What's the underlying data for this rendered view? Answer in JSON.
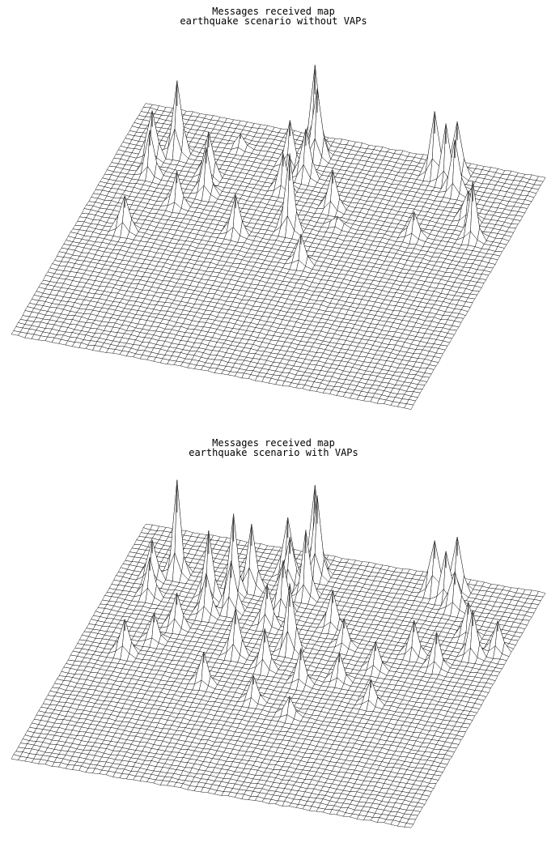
{
  "chart_data": [
    {
      "type": "surface",
      "title_line1": "Messages received map",
      "title_line2": "earthquake scenario without VAPs",
      "grid": "on",
      "axes_shown": false,
      "line_color": "#000000",
      "fill_color": "#ffffff",
      "grid_size": [
        60,
        60
      ],
      "peaks": [
        {
          "row": 10,
          "col": 8,
          "height": 1.0
        },
        {
          "row": 12,
          "col": 5,
          "height": 0.6
        },
        {
          "row": 16,
          "col": 6,
          "height": 0.45
        },
        {
          "row": 14,
          "col": 14,
          "height": 0.65
        },
        {
          "row": 18,
          "col": 15,
          "height": 0.55
        },
        {
          "row": 22,
          "col": 12,
          "height": 0.35
        },
        {
          "row": 30,
          "col": 7,
          "height": 0.5
        },
        {
          "row": 6,
          "col": 16,
          "height": 0.15
        },
        {
          "row": 3,
          "col": 26,
          "height": 1.1
        },
        {
          "row": 5,
          "col": 27,
          "height": 0.9
        },
        {
          "row": 8,
          "col": 24,
          "height": 0.55
        },
        {
          "row": 10,
          "col": 27,
          "height": 0.6
        },
        {
          "row": 14,
          "col": 25,
          "height": 0.45
        },
        {
          "row": 26,
          "col": 22,
          "height": 0.5
        },
        {
          "row": 23,
          "col": 29,
          "height": 0.9
        },
        {
          "row": 30,
          "col": 33,
          "height": 0.35
        },
        {
          "row": 4,
          "col": 44,
          "height": 0.75
        },
        {
          "row": 3,
          "col": 47,
          "height": 0.8
        },
        {
          "row": 5,
          "col": 46,
          "height": 0.65
        },
        {
          "row": 7,
          "col": 48,
          "height": 0.55
        },
        {
          "row": 13,
          "col": 52,
          "height": 0.45
        },
        {
          "row": 17,
          "col": 54,
          "height": 0.6
        },
        {
          "row": 19,
          "col": 46,
          "height": 0.35
        },
        {
          "row": 16,
          "col": 33,
          "height": 0.4
        },
        {
          "row": 20,
          "col": 35,
          "height": 0.15
        }
      ]
    },
    {
      "type": "surface",
      "title_line1": "Messages received map",
      "title_line2": "earthquake scenario with VAPs",
      "grid": "on",
      "axes_shown": false,
      "line_color": "#000000",
      "fill_color": "#ffffff",
      "grid_size": [
        60,
        60
      ],
      "peaks": [
        {
          "row": 10,
          "col": 8,
          "height": 1.0
        },
        {
          "row": 12,
          "col": 5,
          "height": 0.6
        },
        {
          "row": 16,
          "col": 6,
          "height": 0.45
        },
        {
          "row": 14,
          "col": 14,
          "height": 0.8
        },
        {
          "row": 12,
          "col": 17,
          "height": 0.95
        },
        {
          "row": 10,
          "col": 19,
          "height": 0.85
        },
        {
          "row": 16,
          "col": 18,
          "height": 0.7
        },
        {
          "row": 18,
          "col": 15,
          "height": 0.55
        },
        {
          "row": 22,
          "col": 12,
          "height": 0.45
        },
        {
          "row": 30,
          "col": 7,
          "height": 0.5
        },
        {
          "row": 26,
          "col": 10,
          "height": 0.3
        },
        {
          "row": 3,
          "col": 26,
          "height": 1.1
        },
        {
          "row": 5,
          "col": 27,
          "height": 0.95
        },
        {
          "row": 6,
          "col": 23,
          "height": 0.8
        },
        {
          "row": 8,
          "col": 24,
          "height": 0.7
        },
        {
          "row": 10,
          "col": 27,
          "height": 0.7
        },
        {
          "row": 14,
          "col": 25,
          "height": 0.6
        },
        {
          "row": 18,
          "col": 24,
          "height": 0.5
        },
        {
          "row": 26,
          "col": 22,
          "height": 0.55
        },
        {
          "row": 23,
          "col": 29,
          "height": 0.9
        },
        {
          "row": 28,
          "col": 27,
          "height": 0.45
        },
        {
          "row": 30,
          "col": 33,
          "height": 0.4
        },
        {
          "row": 34,
          "col": 20,
          "height": 0.35
        },
        {
          "row": 36,
          "col": 28,
          "height": 0.3
        },
        {
          "row": 4,
          "col": 44,
          "height": 0.75
        },
        {
          "row": 3,
          "col": 47,
          "height": 0.8
        },
        {
          "row": 5,
          "col": 46,
          "height": 0.65
        },
        {
          "row": 7,
          "col": 48,
          "height": 0.55
        },
        {
          "row": 13,
          "col": 52,
          "height": 0.45
        },
        {
          "row": 17,
          "col": 54,
          "height": 0.55
        },
        {
          "row": 15,
          "col": 57,
          "height": 0.35
        },
        {
          "row": 21,
          "col": 50,
          "height": 0.4
        },
        {
          "row": 19,
          "col": 46,
          "height": 0.4
        },
        {
          "row": 24,
          "col": 42,
          "height": 0.35
        },
        {
          "row": 16,
          "col": 33,
          "height": 0.45
        },
        {
          "row": 20,
          "col": 36,
          "height": 0.35
        },
        {
          "row": 28,
          "col": 38,
          "height": 0.3
        },
        {
          "row": 32,
          "col": 44,
          "height": 0.3
        },
        {
          "row": 38,
          "col": 34,
          "height": 0.25
        }
      ]
    }
  ]
}
